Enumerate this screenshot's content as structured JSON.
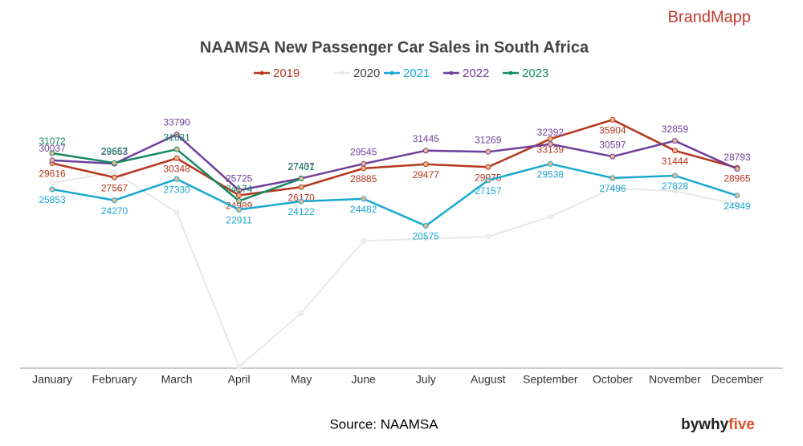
{
  "chart_data": {
    "type": "line",
    "title": "NAAMSA New Passenger Car Sales in South Africa",
    "brand": "BrandMapp",
    "source": "Source: NAAMSA",
    "credit_prefix": "bywhy",
    "credit_suffix": "five",
    "categories": [
      "January",
      "February",
      "March",
      "April",
      "May",
      "June",
      "July",
      "August",
      "September",
      "October",
      "November",
      "December"
    ],
    "ylim": [
      0,
      40000
    ],
    "series": [
      {
        "name": "2019",
        "color": "#b5361c",
        "labels": true,
        "values": [
          29616,
          27567,
          30348,
          24989,
          26170,
          28885,
          29477,
          29075,
          33139,
          35904,
          31444,
          28965
        ]
      },
      {
        "name": "2020",
        "color": "#e8e8e8",
        "labels": false,
        "values": [
          26800,
          28300,
          22500,
          180,
          8000,
          18400,
          18700,
          19000,
          21900,
          26000,
          25600,
          23700
        ]
      },
      {
        "name": "2021",
        "color": "#1ba8d0",
        "labels": true,
        "values": [
          25853,
          24270,
          27330,
          22911,
          24122,
          24482,
          20575,
          27157,
          29538,
          27496,
          27828,
          24949
        ]
      },
      {
        "name": "2022",
        "color": "#6e3f9b",
        "labels": true,
        "values": [
          30037,
          29563,
          33790,
          25725,
          27437,
          29545,
          31445,
          31269,
          32392,
          30597,
          32859,
          28793
        ]
      },
      {
        "name": "2023",
        "color": "#138a5f",
        "labels": true,
        "values": [
          31072,
          29657,
          31631,
          24174,
          27401,
          null,
          null,
          null,
          null,
          null,
          null,
          null
        ]
      }
    ]
  }
}
